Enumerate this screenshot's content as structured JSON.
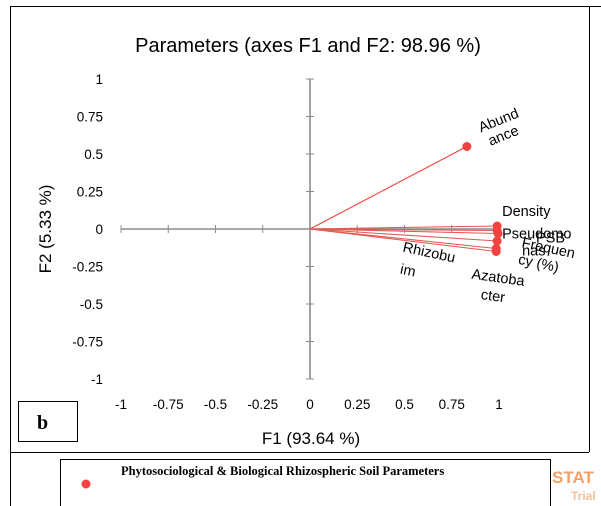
{
  "chart_data": {
    "type": "scatter",
    "title": "Parameters (axes F1 and F2: 98.96 %)",
    "xlabel": "F1 (93.64 %)",
    "ylabel": "F2 (5.33 %)",
    "xlim": [
      -1,
      1
    ],
    "ylim": [
      -1,
      1
    ],
    "x_ticks": [
      -1,
      -0.75,
      -0.5,
      -0.25,
      0,
      0.25,
      0.5,
      0.75,
      1
    ],
    "y_ticks": [
      -1,
      -0.75,
      -0.5,
      -0.25,
      0,
      0.25,
      0.5,
      0.75,
      1
    ],
    "x_tick_labels": [
      "-1",
      "-0.75",
      "-0.5",
      "-0.25",
      "0",
      "0.25",
      "0.5",
      "0.75",
      "1"
    ],
    "y_tick_labels": [
      "-1",
      "-0.75",
      "-0.5",
      "-0.25",
      "0",
      "0.25",
      "0.5",
      "0.75",
      "1"
    ],
    "grid": false,
    "series": [
      {
        "name": "Phytosociological & Biological Rhizospheric Soil Parameters",
        "color": "#f4433f",
        "points": [
          {
            "label_lines": [
              "Abund",
              "ance"
            ],
            "x": 0.83,
            "y": 0.55
          },
          {
            "label_lines": [
              "Density"
            ],
            "x": 0.99,
            "y": 0.02
          },
          {
            "label_lines": [
              "Pseudomo",
              "nas"
            ],
            "x": 0.99,
            "y": -0.01
          },
          {
            "label_lines": [
              "PSB"
            ],
            "x": 0.995,
            "y": -0.03
          },
          {
            "label_lines": [
              "Frequen",
              "cy (%)"
            ],
            "x": 0.99,
            "y": -0.08
          },
          {
            "label_lines": [
              "Rhizobu",
              "im"
            ],
            "x": 0.985,
            "y": -0.13
          },
          {
            "label_lines": [
              "Azatoba",
              "cter"
            ],
            "x": 0.985,
            "y": -0.15
          }
        ]
      }
    ],
    "legend": {
      "position": "bottom",
      "label": "Phytosociological & Biological Rhizospheric Soil Parameters"
    }
  },
  "panel_label": "b",
  "watermark": {
    "line1": "STAT",
    "line2": "Trial"
  }
}
